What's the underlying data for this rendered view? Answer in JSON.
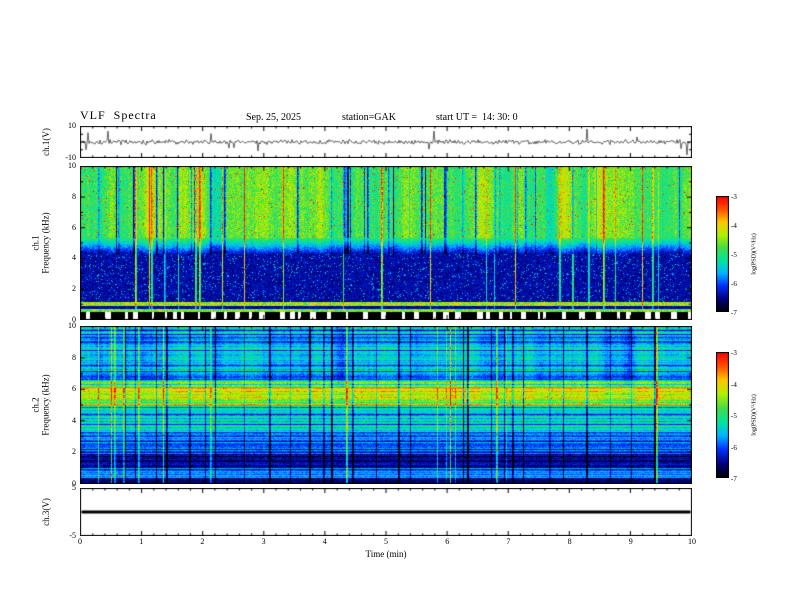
{
  "header": {
    "title": "VLF  Spectra",
    "date": "Sep. 25, 2025",
    "station": "station=GAK",
    "start_ut": "start UT =  14: 30: 0"
  },
  "chart_data": {
    "type": "heatmap",
    "figure": "multi-panel VLF spectra: ch.1 waveform, ch.1 spectrogram, ch.2 spectrogram, ch.3 waveform vs time",
    "xaxis": {
      "label": "Time (min)",
      "lim": [
        0,
        10
      ],
      "ticks": [
        0,
        1,
        2,
        3,
        4,
        5,
        6,
        7,
        8,
        9,
        10
      ],
      "minor_step": 0.2
    },
    "colormap": [
      "#000000",
      "#000080",
      "#0030ff",
      "#00b4ff",
      "#00e6a0",
      "#46dc46",
      "#b4f000",
      "#ffc800",
      "#ff5000",
      "#ff0000"
    ],
    "panels": [
      {
        "id": "ch1_wave",
        "kind": "line",
        "ylabel": "ch.1(V)",
        "ylim": [
          -10,
          10
        ],
        "yticks": [
          10,
          -10
        ],
        "summary": "broadband noise close to 0 V with frequent impulsive spikes toward +/-10 V"
      },
      {
        "id": "ch1_spec",
        "kind": "heatmap",
        "ylabel_line1": "ch.1",
        "ylabel_line2": "Frequency  (kHz)",
        "ylim": [
          0,
          10
        ],
        "yticks": [
          10,
          8,
          6,
          4,
          2,
          0
        ],
        "colorbar": {
          "label": "log(PSD)(V²/Hz)",
          "lim": [
            -7,
            -3
          ],
          "ticks": [
            -3,
            -4,
            -5,
            -6,
            -7
          ]
        },
        "summary": "high PSD (green/yellow with red bursts) above ~5.5 kHz, vertical impulsive streaks through all frequencies, very low PSD (black/dark blue) 1-4.5 kHz, banded stripes and dashed black/white band below 1 kHz"
      },
      {
        "id": "ch2_spec",
        "kind": "heatmap",
        "ylabel_line1": "ch.2",
        "ylabel_line2": "Frequency  (kHz)",
        "ylim": [
          0,
          10
        ],
        "yticks": [
          10,
          8,
          6,
          4,
          2,
          0
        ],
        "colorbar": {
          "label": "log(PSD)(V²/Hz)",
          "lim": [
            -7,
            -3
          ],
          "ticks": [
            -3,
            -4,
            -5,
            -6,
            -7
          ]
        },
        "summary": "cyan/blue background with strong horizontal striping, bright green-yellow band ~5-6.5 kHz, dark band ~1-2 kHz, many vertical impulsive streaks"
      },
      {
        "id": "ch3_wave",
        "kind": "line",
        "flat": true,
        "ylabel": "ch.3(V)",
        "ylim": [
          -5,
          5
        ],
        "yticks": [
          5,
          -5
        ],
        "summary": "constant flat trace at 0 V"
      }
    ]
  }
}
